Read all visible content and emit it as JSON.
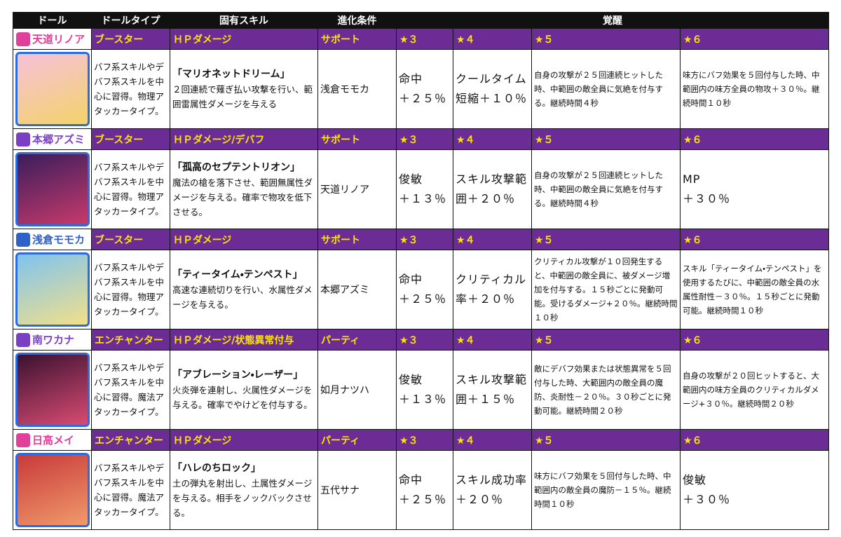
{
  "header": {
    "columns": [
      "ドール",
      "ドールタイプ",
      "固有スキル",
      "進化条件",
      "覚醒"
    ]
  },
  "dolls": [
    {
      "name": "天道リノア",
      "accent": "#e0409a",
      "type": "ブースター",
      "damage": "ＨＰダメージ",
      "evolution_type": "サポート",
      "description": "バフ系スキルやデバフ系スキルを中心に習得。物理アタッカータイプ。",
      "skill_name": "「マリオネットドリーム」",
      "skill_text": "２回連続で薙ぎ払い攻撃を行い、範囲雷属性ダメージを与える",
      "evolution": "浅倉モモカ",
      "awakening": [
        {
          "label": "★３",
          "text": "命中\n＋２５％"
        },
        {
          "label": "★４",
          "text": "クールタイム\n短縮＋１０％"
        },
        {
          "label": "★５",
          "text": "自身の攻撃が２５回連続ヒットした時、中範囲の敵全員に気絶を付与する。継続時間４秒"
        },
        {
          "label": "★６",
          "text": "味方にバフ効果を５回付与した時、中範囲内の味方全員の物攻＋３０％。継続時間１０秒"
        }
      ]
    },
    {
      "name": "本郷アズミ",
      "accent": "#7a3fc4",
      "type": "ブースター",
      "damage": "ＨＰダメージ/デバフ",
      "evolution_type": "サポート",
      "description": "バフ系スキルやデバフ系スキルを中心に習得。物理アタッカータイプ。",
      "skill_name": "「孤高のセプテントリオン」",
      "skill_text": "魔法の槍を落下させ、範囲無属性ダメージを与える。確率で物攻を低下させる。",
      "evolution": "天道リノア",
      "awakening": [
        {
          "label": "★３",
          "text": "俊敏\n＋１３％"
        },
        {
          "label": "★４",
          "text": "スキル攻撃範\n囲＋２０％"
        },
        {
          "label": "★５",
          "text": "自身の攻撃が２５回連続ヒットした時、中範囲の敵全員に気絶を付与する。継続時間４秒"
        },
        {
          "label": "★６",
          "text": "MP\n＋３０％"
        }
      ]
    },
    {
      "name": "浅倉モモカ",
      "accent": "#2f62c8",
      "type": "ブースター",
      "damage": "ＨＰダメージ",
      "evolution_type": "サポート",
      "description": "バフ系スキルやデバフ系スキルを中心に習得。物理アタッカータイプ。",
      "skill_name": "「ティータイム・テンペスト」",
      "skill_text": "高速な連続切りを行い、水属性ダメージを与える。",
      "evolution": "本郷アズミ",
      "awakening": [
        {
          "label": "★３",
          "text": "命中\n＋２５％"
        },
        {
          "label": "★４",
          "text": "クリティカル\n率＋２０％"
        },
        {
          "label": "★５",
          "text": "クリティカル攻撃が１０回発生すると、中範囲の敵全員に、被ダメージ増加を付与する。１５秒ごとに発動可能。受けるダメージ+２０％。継続時間１０秒"
        },
        {
          "label": "★６",
          "text": "スキル「ティータイム・テンペスト」を使用するたびに、中範囲の敵全員の水属性耐性－３０％。１５秒ごとに発動可能。継続時間１０秒"
        }
      ]
    },
    {
      "name": "南ワカナ",
      "accent": "#7a3fc4",
      "type": "エンチャンター",
      "damage": "ＨＰダメージ/状態異常付与",
      "evolution_type": "パーティ",
      "description": "バフ系スキルやデバフ系スキルを中心に習得。魔法アタッカータイプ。",
      "skill_name": "「アブレーション・レーザー」",
      "skill_text": "火炎弾を連射し、火属性ダメージを与える。確率でやけどを付与する。",
      "evolution": "如月ナツハ",
      "awakening": [
        {
          "label": "★３",
          "text": "俊敏\n＋１３％"
        },
        {
          "label": "★４",
          "text": "スキル攻撃範\n囲＋１５％"
        },
        {
          "label": "★５",
          "text": "敵にデバフ効果または状態異常を５回付与した時、大範囲内の敵全員の魔防、炎耐性－２０％。３０秒ごとに発動可能。継続時間２０秒"
        },
        {
          "label": "★６",
          "text": "自身の攻撃が２０回ヒットすると、大範囲内の味方全員のクリティカルダメージ+３０％。継続時間２０秒"
        }
      ]
    },
    {
      "name": "日高メイ",
      "accent": "#e0409a",
      "type": "エンチャンター",
      "damage": "ＨＰダメージ",
      "evolution_type": "パーティ",
      "description": "バフ系スキルやデバフ系スキルを中心に習得。魔法アタッカータイプ。",
      "skill_name": "「ハレのちロック」",
      "skill_text": "土の弾丸を射出し、土属性ダメージを与える。相手をノックバックさせる。",
      "evolution": "五代サナ",
      "awakening": [
        {
          "label": "★３",
          "text": "命中\n＋２５％"
        },
        {
          "label": "★４",
          "text": "スキル成功率\n＋２０％"
        },
        {
          "label": "★５",
          "text": "味方にバフ効果を５回付与した時、中範囲内の敵全員の魔防－１５％。継続時間１０秒"
        },
        {
          "label": "★６",
          "text": "俊敏\n＋３０％"
        }
      ]
    }
  ]
}
